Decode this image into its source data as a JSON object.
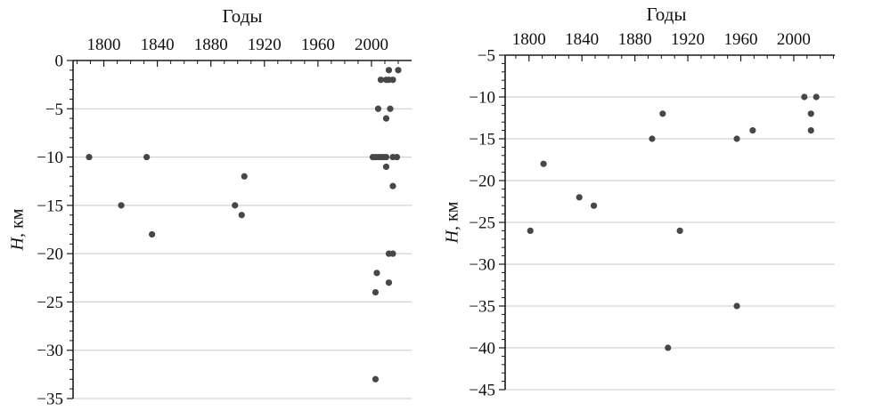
{
  "figure": {
    "background": "#ffffff",
    "styles": {
      "dot_color": "#474747",
      "grid_color": "#c9c9c9",
      "axis_color": "#1a1a1a",
      "text_color": "#111111"
    }
  },
  "chart_data": [
    {
      "id": "left",
      "type": "scatter",
      "title": "Годы",
      "xlabel": "Годы",
      "ylabel": "H, км",
      "ylabel_italic": "H",
      "ylabel_rest": ", км",
      "xlim": [
        1777,
        2030
      ],
      "ylim": [
        -35,
        0
      ],
      "x_major_ticks": [
        1800,
        1840,
        1880,
        1920,
        1960,
        2000
      ],
      "x_minor_step": 10,
      "y_major_step": 5,
      "y_minor_step": 1,
      "grid": "horizontal-major",
      "points": [
        [
          1789,
          -10
        ],
        [
          1832,
          -10
        ],
        [
          1813,
          -15
        ],
        [
          1836,
          -18
        ],
        [
          1898,
          -15
        ],
        [
          1903,
          -16
        ],
        [
          1905,
          -12
        ],
        [
          2013,
          -1
        ],
        [
          2020,
          -1
        ],
        [
          2007,
          -2
        ],
        [
          2011,
          -2
        ],
        [
          2013,
          -2
        ],
        [
          2016,
          -2
        ],
        [
          2005,
          -5
        ],
        [
          2014,
          -5
        ],
        [
          2011,
          -6
        ],
        [
          2001,
          -10
        ],
        [
          2003,
          -10
        ],
        [
          2005,
          -10
        ],
        [
          2007,
          -10
        ],
        [
          2009,
          -10
        ],
        [
          2011,
          -10
        ],
        [
          2016,
          -10
        ],
        [
          2019,
          -10
        ],
        [
          2011,
          -11
        ],
        [
          2016,
          -13
        ],
        [
          2013,
          -20
        ],
        [
          2016,
          -20
        ],
        [
          2004,
          -22
        ],
        [
          2013,
          -23
        ],
        [
          2003,
          -24
        ],
        [
          2003,
          -33
        ]
      ]
    },
    {
      "id": "right",
      "type": "scatter",
      "title": "Годы",
      "xlabel": "Годы",
      "ylabel": "H, км",
      "ylabel_italic": "H",
      "ylabel_rest": ", км",
      "xlim": [
        1782,
        2031
      ],
      "ylim": [
        -45,
        -5
      ],
      "x_major_ticks": [
        1800,
        1840,
        1880,
        1920,
        1960,
        2000
      ],
      "x_minor_step": 10,
      "y_major_step": 5,
      "y_minor_step": 1,
      "grid": "horizontal-major",
      "points": [
        [
          1801,
          -26
        ],
        [
          1811,
          -18
        ],
        [
          1838,
          -22
        ],
        [
          1849,
          -23
        ],
        [
          1893,
          -15
        ],
        [
          1901,
          -12
        ],
        [
          1905,
          -40
        ],
        [
          1914,
          -26
        ],
        [
          1957,
          -15
        ],
        [
          1957,
          -35
        ],
        [
          1969,
          -14
        ],
        [
          2008,
          -10
        ],
        [
          2017,
          -10
        ],
        [
          2013,
          -12
        ],
        [
          2013,
          -14
        ]
      ]
    }
  ]
}
